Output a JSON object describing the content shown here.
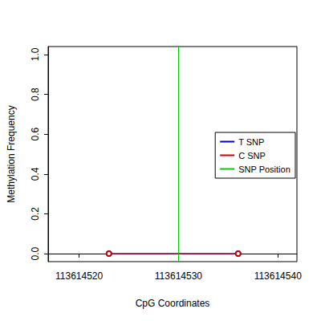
{
  "chart_data": {
    "type": "line",
    "x_label": "CpG Coordinates",
    "y_label": "Methylation Frequency",
    "xlim": [
      113614516.88,
      113614541.92
    ],
    "xticks": [
      113614520,
      113614530,
      113614540
    ],
    "ylim": [
      -0.04,
      1.04
    ],
    "yticks": [
      {
        "value": 0,
        "label": "0.0"
      },
      {
        "value": 0.2,
        "label": "0.2"
      },
      {
        "value": 0.4,
        "label": "0.4"
      },
      {
        "value": 0.6,
        "label": "0.6"
      },
      {
        "value": 0.8,
        "label": "0.8"
      },
      {
        "value": 1,
        "label": "1.0"
      }
    ],
    "grid": false,
    "legend": "right",
    "series": [
      {
        "name": "T SNP",
        "color": "#0000cd",
        "marker": "circle",
        "line_style": "solid",
        "x": [
          113614523,
          113614536
        ],
        "values": [
          0,
          0
        ]
      },
      {
        "name": "C SNP",
        "color": "#cd0000",
        "marker": "circle",
        "line_style": "solid",
        "x": [
          113614523,
          113614536
        ],
        "values": [
          0,
          0
        ]
      },
      {
        "name": "SNP Position",
        "color": "#00cd00",
        "type": "vline",
        "line_style": "solid",
        "x": [
          113614530
        ]
      }
    ]
  }
}
